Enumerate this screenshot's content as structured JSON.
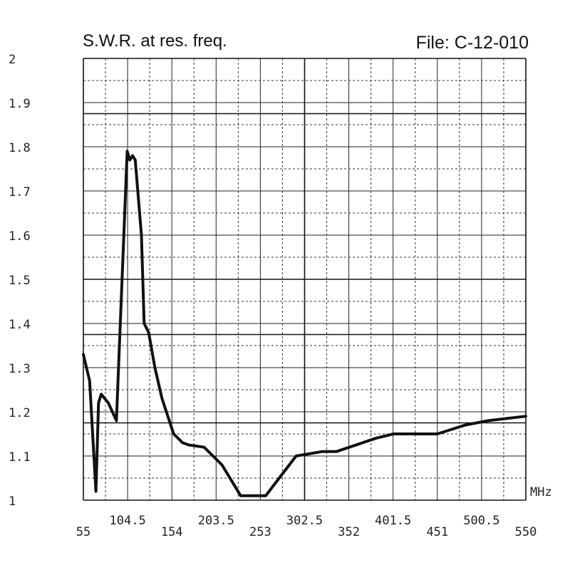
{
  "header": {
    "title": "S.W.R. at res. freq.",
    "file_label": "File:  C-12-010"
  },
  "chart_data": {
    "type": "line",
    "title": "S.W.R. at res. freq.",
    "xlabel": "",
    "ylabel": "",
    "x_unit": "MHz",
    "xlim": [
      55,
      550
    ],
    "ylim": [
      1,
      2
    ],
    "x_ticks": [
      "55",
      "104.5",
      "154",
      "203.5",
      "253",
      "302.5",
      "352",
      "401.5",
      "451",
      "500.5",
      "550"
    ],
    "y_ticks": [
      "1",
      "1.1",
      "1.2",
      "1.3",
      "1.4",
      "1.5",
      "1.6",
      "1.7",
      "1.8",
      "1.9",
      "2"
    ],
    "grid": true,
    "series": [
      {
        "color": "#111111",
        "x": [
          55,
          62,
          69,
          72,
          75,
          83,
          92,
          104,
          107,
          110,
          113,
          120,
          123,
          128,
          135,
          143,
          156,
          166,
          173,
          190,
          210,
          231,
          259,
          293,
          322,
          338,
          382,
          402,
          427,
          451,
          482,
          508,
          550
        ],
        "y": [
          1.33,
          1.27,
          1.02,
          1.22,
          1.24,
          1.22,
          1.18,
          1.79,
          1.77,
          1.78,
          1.77,
          1.6,
          1.4,
          1.38,
          1.3,
          1.23,
          1.15,
          1.13,
          1.125,
          1.12,
          1.08,
          1.01,
          1.01,
          1.1,
          1.11,
          1.11,
          1.14,
          1.15,
          1.15,
          1.15,
          1.17,
          1.18,
          1.19
        ]
      }
    ]
  }
}
